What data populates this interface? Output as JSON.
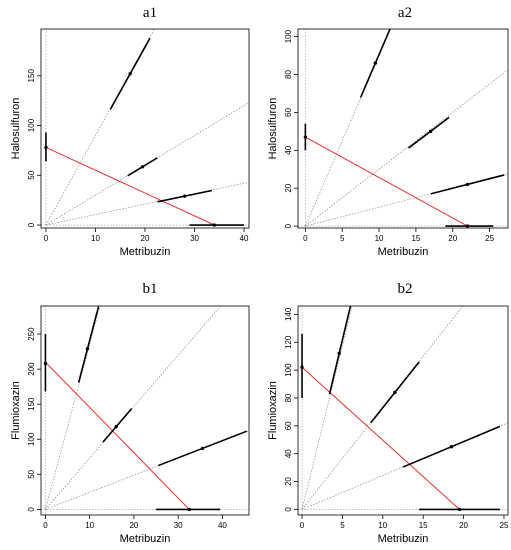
{
  "chart_data": [
    {
      "type": "isobologram",
      "title": "a1",
      "xlabel": "Metribuzin",
      "ylabel": "Halosulfuron",
      "xlim": [
        -1,
        41
      ],
      "ylim": [
        -3,
        197
      ],
      "xticks": [
        0,
        10,
        20,
        30,
        40
      ],
      "yticks": [
        0,
        50,
        100,
        150
      ],
      "ref_slopes": [
        9.0,
        3.0,
        1.05
      ],
      "isobole": {
        "x": [
          0,
          34
        ],
        "y": [
          78,
          0
        ]
      },
      "points": [
        {
          "x": 0,
          "y": 78,
          "ci": {
            "axis": "y",
            "low": 64,
            "high": 93
          }
        },
        {
          "x": 17,
          "y": 152,
          "ci": {
            "axis": "along",
            "low": 13,
            "high": 21
          }
        },
        {
          "x": 19.5,
          "y": 58.5,
          "ci": {
            "axis": "along",
            "low": 16.5,
            "high": 22.5
          }
        },
        {
          "x": 28,
          "y": 29,
          "ci": {
            "axis": "along",
            "low": 22.5,
            "high": 33.5
          }
        },
        {
          "x": 34,
          "y": 0,
          "ci": {
            "axis": "x",
            "low": 29,
            "high": 40
          }
        }
      ]
    },
    {
      "type": "isobologram",
      "title": "a2",
      "xlabel": "Metribuzin",
      "ylabel": "Halosulfuron",
      "xlim": [
        -1,
        27.5
      ],
      "ylim": [
        -1,
        104
      ],
      "xticks": [
        0,
        5,
        10,
        15,
        20,
        25
      ],
      "yticks": [
        0,
        20,
        40,
        60,
        80,
        100
      ],
      "ref_slopes": [
        9.0,
        3.0,
        1.0
      ],
      "isobole": {
        "x": [
          0,
          22
        ],
        "y": [
          47,
          0
        ]
      },
      "points": [
        {
          "x": 0,
          "y": 47,
          "ci": {
            "axis": "y",
            "low": 40,
            "high": 54
          }
        },
        {
          "x": 9.5,
          "y": 86,
          "ci": {
            "axis": "along",
            "low": 7.5,
            "high": 11.5
          }
        },
        {
          "x": 17,
          "y": 50,
          "ci": {
            "axis": "along",
            "low": 14,
            "high": 19.5
          }
        },
        {
          "x": 22,
          "y": 22,
          "ci": {
            "axis": "along",
            "low": 17,
            "high": 27
          }
        },
        {
          "x": 22,
          "y": 0,
          "ci": {
            "axis": "x",
            "low": 19,
            "high": 25.5
          }
        }
      ]
    },
    {
      "type": "isobologram",
      "title": "b1",
      "xlabel": "Metribuzin",
      "ylabel": "Flumioxazin",
      "xlim": [
        -1,
        46
      ],
      "ylim": [
        -8,
        290
      ],
      "xticks": [
        0,
        10,
        20,
        30,
        40
      ],
      "yticks": [
        0,
        50,
        100,
        150,
        200,
        250
      ],
      "ref_slopes": [
        23.5,
        7.33,
        2.44
      ],
      "isobole": {
        "x": [
          0,
          32.5
        ],
        "y": [
          210,
          0
        ]
      },
      "points": [
        {
          "x": 0,
          "y": 208,
          "ci": {
            "axis": "y",
            "low": 168,
            "high": 250
          }
        },
        {
          "x": 9.5,
          "y": 229,
          "ci": {
            "axis": "along",
            "low": 7.5,
            "high": 12
          }
        },
        {
          "x": 16,
          "y": 118,
          "ci": {
            "axis": "along",
            "low": 13,
            "high": 19.5
          }
        },
        {
          "x": 35.5,
          "y": 87,
          "ci": {
            "axis": "along",
            "low": 25.5,
            "high": 45.5
          }
        },
        {
          "x": 32.5,
          "y": 0,
          "ci": {
            "axis": "x",
            "low": 25,
            "high": 39.5
          }
        }
      ]
    },
    {
      "type": "isobologram",
      "title": "b2",
      "xlabel": "Metribuzin",
      "ylabel": "Flumioxazin",
      "xlim": [
        -0.5,
        25.5
      ],
      "ylim": [
        -4,
        146
      ],
      "xticks": [
        0,
        5,
        10,
        15,
        20,
        25
      ],
      "yticks": [
        0,
        20,
        40,
        60,
        80,
        100,
        120,
        140
      ],
      "ref_slopes": [
        23.5,
        7.33,
        2.44
      ],
      "isobole": {
        "x": [
          0,
          19.5
        ],
        "y": [
          102,
          0
        ]
      },
      "points": [
        {
          "x": 0,
          "y": 102,
          "ci": {
            "axis": "y",
            "low": 80,
            "high": 126
          }
        },
        {
          "x": 4.6,
          "y": 112,
          "ci": {
            "axis": "along",
            "low": 3.4,
            "high": 6.1
          }
        },
        {
          "x": 11.5,
          "y": 84,
          "ci": {
            "axis": "along",
            "low": 8.5,
            "high": 14.5
          }
        },
        {
          "x": 18.5,
          "y": 45,
          "ci": {
            "axis": "along",
            "low": 12.5,
            "high": 24.5
          }
        },
        {
          "x": 19.5,
          "y": 0,
          "ci": {
            "axis": "x",
            "low": 14.5,
            "high": 24.5
          }
        }
      ]
    }
  ]
}
